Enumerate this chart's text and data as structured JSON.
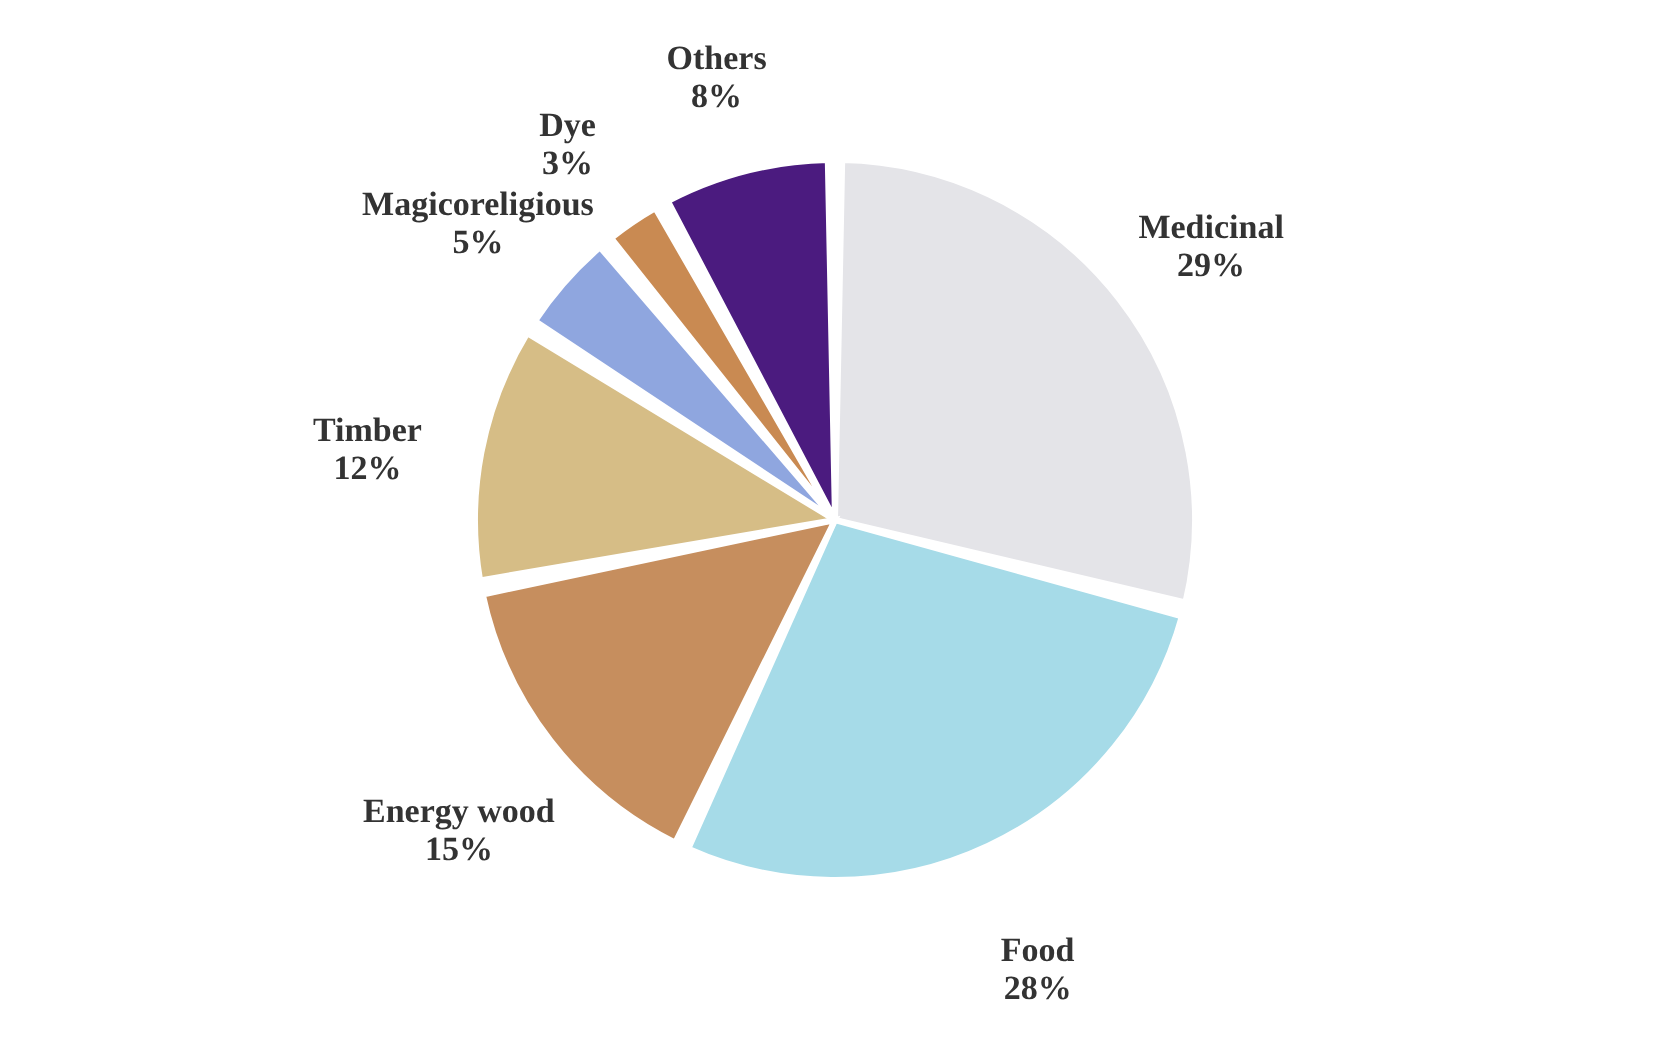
{
  "chart_data": {
    "type": "pie",
    "categories": [
      "Medicinal",
      "Food",
      "Energy wood",
      "Timber",
      "Magicoreligious",
      "Dye",
      "Others"
    ],
    "values": [
      29,
      28,
      15,
      12,
      5,
      3,
      8
    ],
    "colors": [
      "#e4e4e8",
      "#a6dbe8",
      "#c68e5e",
      "#d6bd86",
      "#8fa6df",
      "#c98a52",
      "#4b1b7f"
    ],
    "value_labels": [
      "29%",
      "28%",
      "15%",
      "12%",
      "5%",
      "3%",
      "8%"
    ],
    "legend": false
  }
}
